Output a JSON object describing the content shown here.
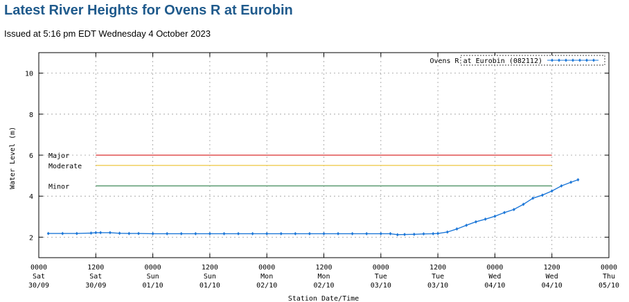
{
  "page": {
    "title": "Latest River Heights for Ovens R at Eurobin",
    "issued": "Issued at 5:16 pm EDT Wednesday 4 October 2023"
  },
  "chart_data": {
    "type": "line",
    "title": "",
    "xlabel": "Station Date/Time",
    "ylabel": "Water Level (m)",
    "ylim": [
      1,
      11
    ],
    "yticks": [
      2,
      4,
      6,
      8,
      10
    ],
    "xlim_hours": [
      0,
      120
    ],
    "grid": true,
    "legend_position": "top-right",
    "xticks": [
      {
        "h": 0,
        "label1": "0000",
        "label2": "Sat",
        "label3": "30/09"
      },
      {
        "h": 12,
        "label1": "1200",
        "label2": "Sat",
        "label3": "30/09"
      },
      {
        "h": 24,
        "label1": "0000",
        "label2": "Sun",
        "label3": "01/10"
      },
      {
        "h": 36,
        "label1": "1200",
        "label2": "Sun",
        "label3": "01/10"
      },
      {
        "h": 48,
        "label1": "0000",
        "label2": "Mon",
        "label3": "02/10"
      },
      {
        "h": 60,
        "label1": "1200",
        "label2": "Mon",
        "label3": "02/10"
      },
      {
        "h": 72,
        "label1": "0000",
        "label2": "Tue",
        "label3": "03/10"
      },
      {
        "h": 84,
        "label1": "1200",
        "label2": "Tue",
        "label3": "03/10"
      },
      {
        "h": 96,
        "label1": "0000",
        "label2": "Wed",
        "label3": "04/10"
      },
      {
        "h": 108,
        "label1": "1200",
        "label2": "Wed",
        "label3": "04/10"
      },
      {
        "h": 120,
        "label1": "0000",
        "label2": "Thu",
        "label3": "05/10"
      }
    ],
    "thresholds": [
      {
        "name": "Major",
        "value": 6.0,
        "color": "#e05050",
        "h_start": 12,
        "h_end": 108
      },
      {
        "name": "Moderate",
        "value": 5.5,
        "color": "#f0d060",
        "h_start": 12,
        "h_end": 108
      },
      {
        "name": "Minor",
        "value": 4.5,
        "color": "#5a9a70",
        "h_start": 12,
        "h_end": 108
      }
    ],
    "series": [
      {
        "name": "Ovens R at Eurobin (082112)",
        "color": "#1e78d8",
        "points": [
          [
            2,
            2.18
          ],
          [
            5,
            2.18
          ],
          [
            8,
            2.18
          ],
          [
            11,
            2.2
          ],
          [
            12,
            2.22
          ],
          [
            13,
            2.22
          ],
          [
            15,
            2.22
          ],
          [
            17,
            2.19
          ],
          [
            19,
            2.18
          ],
          [
            21,
            2.18
          ],
          [
            24,
            2.17
          ],
          [
            27,
            2.17
          ],
          [
            30,
            2.17
          ],
          [
            33,
            2.17
          ],
          [
            36,
            2.17
          ],
          [
            39,
            2.17
          ],
          [
            42,
            2.17
          ],
          [
            45,
            2.17
          ],
          [
            48,
            2.17
          ],
          [
            51,
            2.17
          ],
          [
            54,
            2.17
          ],
          [
            57,
            2.17
          ],
          [
            60,
            2.17
          ],
          [
            63,
            2.17
          ],
          [
            66,
            2.17
          ],
          [
            69,
            2.17
          ],
          [
            72,
            2.17
          ],
          [
            74,
            2.17
          ],
          [
            75.5,
            2.12
          ],
          [
            77,
            2.13
          ],
          [
            79,
            2.14
          ],
          [
            81,
            2.16
          ],
          [
            83,
            2.17
          ],
          [
            84,
            2.18
          ],
          [
            86,
            2.25
          ],
          [
            88,
            2.4
          ],
          [
            90,
            2.58
          ],
          [
            92,
            2.75
          ],
          [
            94,
            2.88
          ],
          [
            96,
            3.02
          ],
          [
            98,
            3.2
          ],
          [
            100,
            3.35
          ],
          [
            102,
            3.6
          ],
          [
            104,
            3.9
          ],
          [
            106,
            4.05
          ],
          [
            108,
            4.25
          ],
          [
            110,
            4.5
          ],
          [
            112,
            4.68
          ],
          [
            113.5,
            4.8
          ]
        ]
      }
    ]
  }
}
